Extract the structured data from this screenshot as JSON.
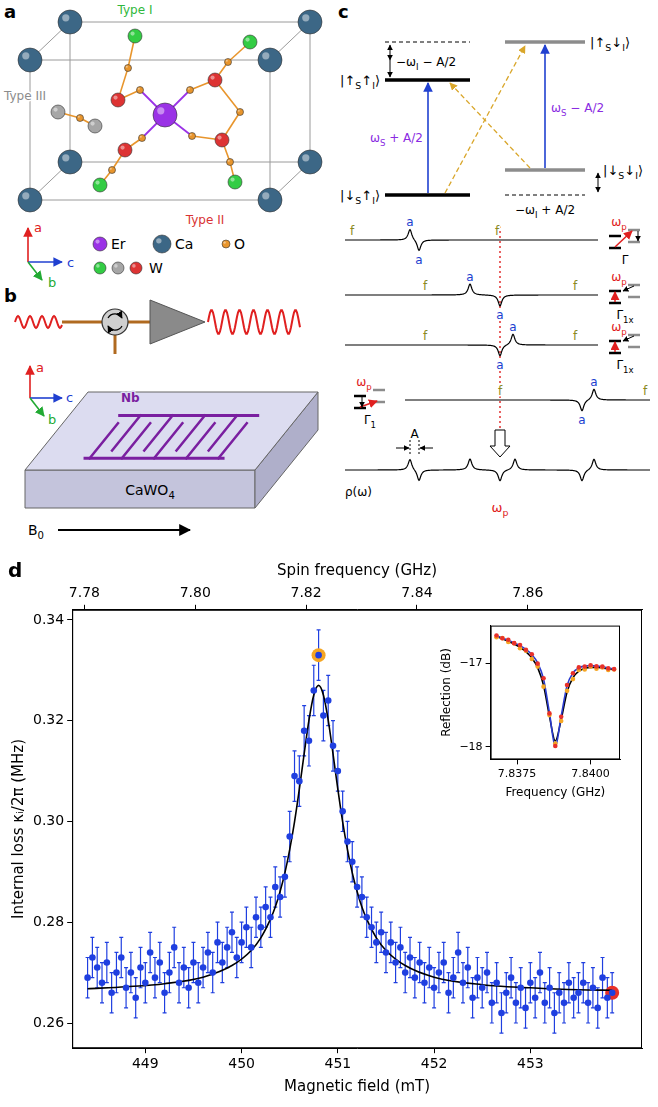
{
  "panel_a": {
    "letter": "a",
    "axes": [
      "a",
      "b",
      "c"
    ],
    "site_labels": [
      {
        "text": "Type I",
        "color": "#2fb83c"
      },
      {
        "text": "Type II",
        "color": "#d93333"
      },
      {
        "text": "Type III",
        "color": "#8c8c8c"
      }
    ],
    "legend": [
      {
        "label": "Er",
        "colors": [
          "#9a32e6"
        ]
      },
      {
        "label": "Ca",
        "colors": [
          "#3c6786"
        ]
      },
      {
        "label": "O",
        "colors": [
          "#e8952c"
        ]
      },
      {
        "label": "W",
        "colors": [
          "#33cc44",
          "#a6a6a6",
          "#dd3333"
        ]
      }
    ]
  },
  "panel_b": {
    "letter": "b",
    "axes": [
      "a",
      "b",
      "c"
    ],
    "metal": "Nb",
    "substrate": [
      "CaWO",
      {
        "sub": "4"
      }
    ],
    "field": [
      "B",
      {
        "sub": "0"
      }
    ]
  },
  "panel_c": {
    "letter": "c",
    "kets": [
      [
        "|↑",
        {
          "sub": "S"
        },
        "↑",
        {
          "sub": "I"
        },
        "⟩"
      ],
      [
        "|↑",
        {
          "sub": "S"
        },
        "↓",
        {
          "sub": "I"
        },
        "⟩"
      ],
      [
        "|↓",
        {
          "sub": "S"
        },
        "↓",
        {
          "sub": "I"
        },
        "⟩"
      ],
      [
        "|↓",
        {
          "sub": "S"
        },
        "↑",
        {
          "sub": "I"
        },
        "⟩"
      ]
    ],
    "splittings": [
      [
        "−ω",
        {
          "sub": "I"
        },
        " − A/2"
      ],
      [
        "ω",
        {
          "sub": "S"
        },
        " + A/2"
      ],
      [
        "ω",
        {
          "sub": "S"
        },
        " − A/2"
      ],
      [
        "−ω",
        {
          "sub": "I"
        },
        " + A/2"
      ]
    ],
    "peak_labels": {
      "f": "f",
      "a": "a"
    },
    "rows": [
      {
        "rate": [
          "Γ"
        ]
      },
      {
        "rate": [
          "Γ",
          {
            "sub": "1x"
          }
        ]
      },
      {
        "rate": [
          "Γ",
          {
            "sub": "1x"
          }
        ]
      },
      {
        "rate": [
          "Γ",
          {
            "sub": "1"
          }
        ]
      }
    ],
    "pump": [
      "ω",
      {
        "sub": "p"
      }
    ],
    "density": "ρ(ω)",
    "width": "A"
  },
  "chart_data": [
    {
      "type": "scatter",
      "annotations": [
        {
          "text": "d"
        }
      ],
      "x_label": "Magnetic field (mT)",
      "x2_label": "Spin frequency (GHz)",
      "y_label": "Internal loss κᵢ/2π (MHz)",
      "xlim": [
        448.24,
        454.16
      ],
      "xticks": [
        449,
        450,
        451,
        452,
        453
      ],
      "x2lim": [
        7.7778,
        7.8806
      ],
      "x2ticks": [
        7.78,
        {
          "value": 7.8,
          "label": "7.80"
        },
        7.82,
        7.84,
        7.86
      ],
      "ylim": [
        0.255,
        0.342
      ],
      "yticks": [
        0.26,
        0.28,
        {
          "value": 0.3,
          "label": "0.30"
        },
        0.32,
        0.34
      ],
      "grid": false,
      "series": [
        {
          "color": "#1f3fe0",
          "marker": "circle",
          "x": [
            448.4,
            448.45,
            448.5,
            448.55,
            448.6,
            448.65,
            448.7,
            448.75,
            448.8,
            448.85,
            448.9,
            448.95,
            449,
            449.05,
            449.1,
            449.15,
            449.2,
            449.25,
            449.3,
            449.35,
            449.4,
            449.45,
            449.5,
            449.55,
            449.6,
            449.65,
            449.7,
            449.75,
            449.8,
            449.85,
            449.9,
            449.95,
            450,
            450.05,
            450.1,
            450.15,
            450.2,
            450.25,
            450.3,
            450.35,
            450.4,
            450.45,
            450.5,
            450.55,
            450.6,
            450.65,
            450.7,
            450.75,
            450.8,
            450.85,
            450.9,
            450.95,
            451,
            451.05,
            451.1,
            451.15,
            451.2,
            451.25,
            451.3,
            451.35,
            451.4,
            451.45,
            451.5,
            451.55,
            451.6,
            451.65,
            451.7,
            451.75,
            451.8,
            451.85,
            451.9,
            451.95,
            452,
            452.05,
            452.1,
            452.15,
            452.2,
            452.25,
            452.3,
            452.35,
            452.4,
            452.45,
            452.5,
            452.55,
            452.6,
            452.65,
            452.7,
            452.75,
            452.8,
            452.85,
            452.9,
            452.95,
            453,
            453.05,
            453.1,
            453.15,
            453.2,
            453.25,
            453.3,
            453.35,
            453.4,
            453.45,
            453.5,
            453.55,
            453.6,
            453.65,
            453.7,
            453.75,
            453.8,
            453.85
          ],
          "values": [
            0.269,
            0.273,
            0.271,
            0.268,
            0.272,
            0.266,
            0.27,
            0.273,
            0.267,
            0.27,
            0.265,
            0.271,
            0.268,
            0.274,
            0.269,
            0.272,
            0.266,
            0.27,
            0.275,
            0.268,
            0.271,
            0.267,
            0.272,
            0.268,
            0.271,
            0.274,
            0.27,
            0.276,
            0.272,
            0.275,
            0.278,
            0.273,
            0.276,
            0.279,
            0.275,
            0.281,
            0.279,
            0.283,
            0.281,
            0.287,
            0.285,
            0.289,
            0.297,
            0.309,
            0.308,
            0.318,
            0.316,
            0.326,
            0.333,
            0.321,
            0.324,
            0.315,
            0.31,
            0.302,
            0.296,
            0.292,
            0.287,
            0.285,
            0.281,
            0.279,
            0.276,
            0.278,
            0.274,
            0.276,
            0.272,
            0.275,
            0.27,
            0.273,
            0.269,
            0.272,
            0.268,
            0.271,
            0.267,
            0.27,
            0.272,
            0.266,
            0.269,
            0.274,
            0.268,
            0.271,
            0.265,
            0.269,
            0.267,
            0.27,
            0.264,
            0.268,
            0.262,
            0.266,
            0.269,
            0.264,
            0.267,
            0.263,
            0.268,
            0.265,
            0.27,
            0.264,
            0.267,
            0.262,
            0.266,
            0.264,
            0.268,
            0.265,
            0.266,
            0.268,
            0.264,
            0.267,
            0.263,
            0.269,
            0.265,
            0.266
          ],
          "errors": [
            0.004,
            0.004,
            0.004,
            0.004,
            0.004,
            0.004,
            0.004,
            0.004,
            0.004,
            0.004,
            0.004,
            0.004,
            0.004,
            0.004,
            0.004,
            0.004,
            0.004,
            0.004,
            0.004,
            0.004,
            0.004,
            0.004,
            0.004,
            0.004,
            0.004,
            0.004,
            0.004,
            0.004,
            0.004,
            0.004,
            0.004,
            0.004,
            0.004,
            0.004,
            0.004,
            0.004,
            0.004,
            0.004,
            0.004,
            0.004,
            0.004,
            0.004,
            0.005,
            0.005,
            0.005,
            0.005,
            0.005,
            0.005,
            0.005,
            0.005,
            0.005,
            0.005,
            0.004,
            0.004,
            0.004,
            0.004,
            0.004,
            0.004,
            0.004,
            0.004,
            0.004,
            0.004,
            0.004,
            0.004,
            0.004,
            0.004,
            0.004,
            0.004,
            0.004,
            0.004,
            0.004,
            0.004,
            0.004,
            0.004,
            0.004,
            0.004,
            0.004,
            0.004,
            0.004,
            0.004,
            0.004,
            0.004,
            0.004,
            0.004,
            0.004,
            0.004,
            0.004,
            0.004,
            0.004,
            0.004,
            0.004,
            0.004,
            0.004,
            0.004,
            0.004,
            0.004,
            0.004,
            0.004,
            0.004,
            0.004,
            0.004,
            0.004,
            0.004,
            0.004,
            0.004,
            0.004,
            0.004,
            0.004,
            0.004,
            0.004
          ]
        },
        {
          "type": "line",
          "color": "#000000",
          "line_style": "solid",
          "x": [
            448.4,
            448.8,
            449.2,
            449.6,
            449.9,
            450.1,
            450.2,
            450.3,
            450.35,
            450.4,
            450.45,
            450.5,
            450.55,
            450.6,
            450.65,
            450.7,
            450.75,
            450.8,
            450.85,
            450.9,
            450.95,
            451,
            451.05,
            451.1,
            451.15,
            451.2,
            451.25,
            451.3,
            451.4,
            451.5,
            451.7,
            452,
            452.5,
            453,
            453.5,
            453.85
          ],
          "values": [
            0.2668,
            0.2672,
            0.2678,
            0.2691,
            0.2714,
            0.2744,
            0.2769,
            0.2806,
            0.283,
            0.2861,
            0.2898,
            0.2944,
            0.2999,
            0.3064,
            0.3134,
            0.3201,
            0.3251,
            0.327,
            0.3251,
            0.3201,
            0.3134,
            0.3064,
            0.2999,
            0.2944,
            0.2898,
            0.2861,
            0.283,
            0.2806,
            0.2769,
            0.2744,
            0.2714,
            0.2691,
            0.2676,
            0.267,
            0.2666,
            0.2665
          ]
        }
      ],
      "highlights": [
        {
          "x": 450.8,
          "y": 0.333,
          "color": "#f5a623"
        },
        {
          "x": 453.85,
          "y": 0.266,
          "color": "#e8302a"
        }
      ]
    },
    {
      "type": "scatter",
      "x_label": "Frequency (GHz)",
      "y_label": "Reflection (dB)",
      "xlim": [
        7.8366,
        7.841
      ],
      "xticks": [
        7.8375,
        {
          "value": 7.84,
          "label": "7.8400"
        }
      ],
      "ylim": [
        -18.15,
        -16.55
      ],
      "yticks": [
        {
          "value": -17,
          "label": "−17"
        },
        {
          "value": -18,
          "label": "−18"
        }
      ],
      "grid": false,
      "series": [
        {
          "color": "#e8302a",
          "marker": "circle",
          "x": [
            7.8368,
            7.837,
            7.8372,
            7.8374,
            7.8376,
            7.8378,
            7.838,
            7.8382,
            7.8384,
            7.8386,
            7.8388,
            7.839,
            7.8392,
            7.8394,
            7.8396,
            7.8398,
            7.84,
            7.8402,
            7.8404,
            7.8406,
            7.8408
          ],
          "values": [
            -16.668,
            -16.701,
            -16.72,
            -16.76,
            -16.783,
            -16.84,
            -16.892,
            -17.005,
            -17.18,
            -17.6,
            -17.99,
            -17.64,
            -17.26,
            -17.12,
            -17.05,
            -17.04,
            -17.025,
            -17.038,
            -17.04,
            -17.062,
            -17.07
          ]
        },
        {
          "color": "#f5a623",
          "marker": "circle",
          "x": [
            7.8368,
            7.837,
            7.8372,
            7.8374,
            7.8376,
            7.8378,
            7.838,
            7.8382,
            7.8384,
            7.8386,
            7.8388,
            7.839,
            7.8392,
            7.8394,
            7.8396,
            7.8398,
            7.84,
            7.8402,
            7.8404,
            7.8406,
            7.8408
          ],
          "values": [
            -16.69,
            -16.7,
            -16.745,
            -16.762,
            -16.82,
            -16.85,
            -16.95,
            -17.04,
            -17.28,
            -17.62,
            -17.96,
            -17.69,
            -17.33,
            -17.19,
            -17.08,
            -17.075,
            -17.04,
            -17.065,
            -17.05,
            -17.08,
            -17.075
          ]
        },
        {
          "type": "line",
          "color": "#2a3bd0",
          "line_style": "solid",
          "x": [
            7.8368,
            7.837,
            7.8372,
            7.8374,
            7.8376,
            7.8378,
            7.838,
            7.8382,
            7.8384,
            7.8386,
            7.8388,
            7.839,
            7.8392,
            7.8394,
            7.8396,
            7.8398,
            7.84,
            7.8402,
            7.8404,
            7.8406,
            7.8408
          ],
          "values": [
            -16.672,
            -16.697,
            -16.724,
            -16.754,
            -16.789,
            -16.834,
            -16.896,
            -16.996,
            -17.188,
            -17.591,
            -18.0,
            -17.631,
            -17.268,
            -17.116,
            -17.056,
            -17.034,
            -17.029,
            -17.034,
            -17.044,
            -17.057,
            -17.072
          ]
        },
        {
          "type": "line",
          "color": "#000000",
          "line_style": "solid",
          "x": [
            7.8368,
            7.837,
            7.8372,
            7.8374,
            7.8376,
            7.8378,
            7.838,
            7.8382,
            7.8384,
            7.8386,
            7.8388,
            7.839,
            7.8392,
            7.8394,
            7.8396,
            7.8398,
            7.84,
            7.8402,
            7.8404,
            7.8406,
            7.8408
          ],
          "values": [
            -16.68,
            -16.707,
            -16.737,
            -16.77,
            -16.81,
            -16.862,
            -16.935,
            -17.052,
            -17.264,
            -17.632,
            -17.93,
            -17.672,
            -17.344,
            -17.172,
            -17.095,
            -17.062,
            -17.05,
            -17.05,
            -17.057,
            -17.067,
            -17.08
          ]
        }
      ]
    }
  ]
}
